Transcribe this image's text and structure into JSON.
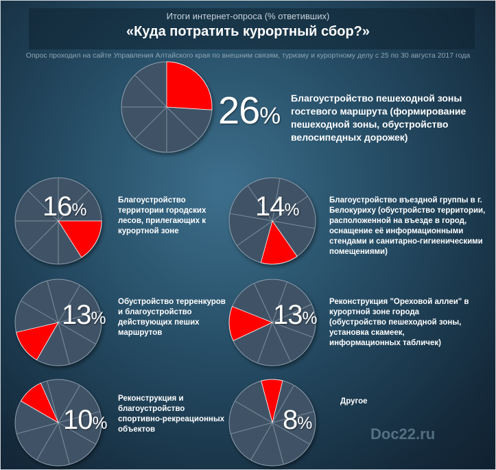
{
  "header": {
    "subtitle": "Итоги интернет-опроса  (% ответивших)",
    "title": "«Куда потратить курортный сбор?»",
    "note": "Опрос проходил на сайте Управления Алтайского края по внешним связям, туризму и курортному делу  с 25 по 30 августа  2017 года"
  },
  "chart_data": {
    "type": "pie",
    "title": "«Куда потратить курортный сбор?»",
    "subtitle": "Итоги интернет-опроса  (% ответивших)",
    "unit": "%",
    "categories": [
      "Благоустройство пешеходной зоны гостевого маршрута (формирование пешеходной зоны, обустройство велосипедных дорожек)",
      "Благоустройство территории городских лесов, прилегающих к курортной зоне",
      "Благоустройство въездной группы в г. Белокуриху (обустройство территории, расположенной на въезде в город, оснащение её информационными стендами и санитарно-гигиеническими помещениями)",
      "Обустройство терренкуров и благоустройство действующих пеших маршрутов",
      "Реконструкция \"Ореховой аллеи\" в курортной зоне города (обустройство пешеходной зоны, установка скамеек, информационных табличек)",
      "Реконструкция и благоустройство спортивно-рекреационных объектов",
      "Другое"
    ],
    "values": [
      26,
      16,
      14,
      13,
      13,
      10,
      8
    ],
    "slice_color": "#ff0000",
    "base_color": "#3f5366"
  },
  "items": [
    {
      "num": "26",
      "sign": "%",
      "lines": [
        "Благоустройство пешеходной зоны",
        "гостевого маршрута (формирование",
        "пешеходной зоны, обустройство",
        "велосипедных дорожек)"
      ]
    },
    {
      "num": "16",
      "sign": "%",
      "lines": [
        "Благоустройство",
        "территории городских",
        "лесов, прилегающих к",
        "курортной зоне"
      ]
    },
    {
      "num": "14",
      "sign": "%",
      "lines": [
        "Благоустройство въездной группы в г.",
        "Белокуриху (обустройство территории,",
        "расположенной на въезде в город,",
        "оснащение её информационными",
        "стендами и санитарно-гигиеническими",
        "помещениями)"
      ]
    },
    {
      "num": "13",
      "sign": "%",
      "lines": [
        "Обустройство терренкуров",
        "и благоустройство",
        "действующих пеших",
        "маршрутов"
      ]
    },
    {
      "num": "13",
      "sign": "%",
      "lines": [
        "Реконструкция \"Ореховой аллеи\" в",
        "курортной зоне города",
        "(обустройство пешеходной зоны,",
        "установка скамеек,",
        "информационных табличек)"
      ]
    },
    {
      "num": "10",
      "sign": "%",
      "lines": [
        "Реконструкция и",
        "благоустройство",
        "спортивно-рекреационных",
        "объектов"
      ]
    },
    {
      "num": "8",
      "sign": "%",
      "lines": [
        "Другое"
      ]
    }
  ],
  "watermark": "Doc22.ru"
}
